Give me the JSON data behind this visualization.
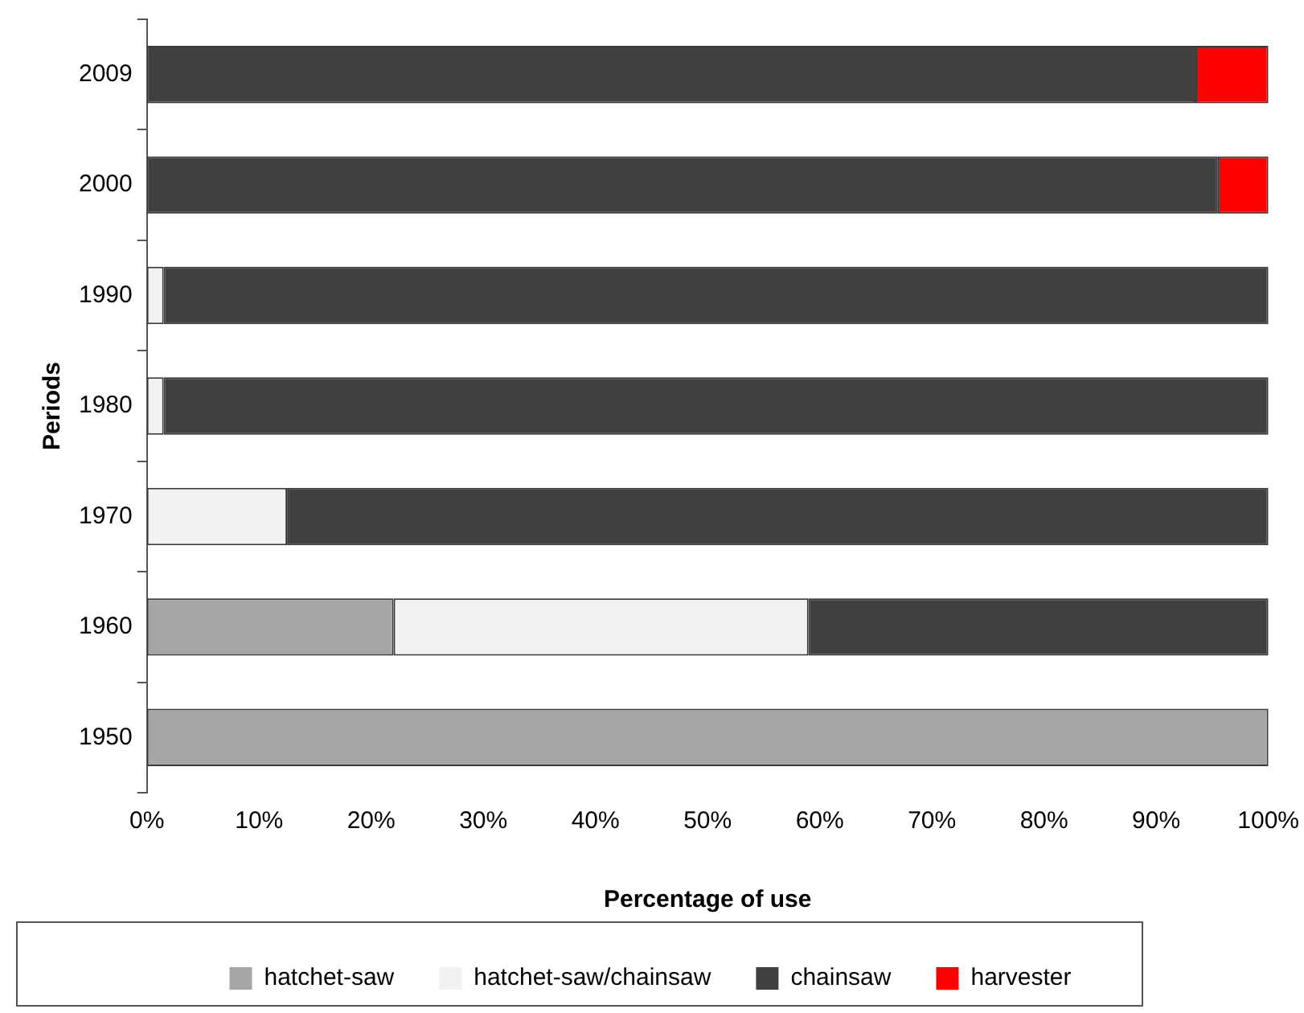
{
  "chart_data": {
    "type": "bar",
    "orientation": "horizontal",
    "stacked": true,
    "xlabel": "Percentage of use",
    "ylabel": "Periods",
    "categories": [
      "2009",
      "2000",
      "1990",
      "1980",
      "1970",
      "1960",
      "1950"
    ],
    "series": [
      {
        "name": "hatchet-saw",
        "color": "#a6a6a6",
        "values": [
          0,
          0,
          0,
          0,
          0,
          22,
          100
        ]
      },
      {
        "name": "hatchet-saw/chainsaw",
        "color": "#f2f2f2",
        "values": [
          0,
          0,
          1.5,
          1.5,
          12.5,
          37,
          0
        ]
      },
      {
        "name": "chainsaw",
        "color": "#404040",
        "values": [
          93.5,
          95.5,
          98.5,
          98.5,
          87.5,
          41,
          0
        ]
      },
      {
        "name": "harvester",
        "color": "#ff0000",
        "values": [
          6.5,
          4.5,
          0,
          0,
          0,
          0,
          0
        ]
      }
    ],
    "xlim": [
      0,
      100
    ],
    "xticks": [
      {
        "value": 0,
        "label": "0%"
      },
      {
        "value": 10,
        "label": "10%"
      },
      {
        "value": 20,
        "label": "20%"
      },
      {
        "value": 30,
        "label": "30%"
      },
      {
        "value": 40,
        "label": "40%"
      },
      {
        "value": 50,
        "label": "50%"
      },
      {
        "value": 60,
        "label": "60%"
      },
      {
        "value": 70,
        "label": "70%"
      },
      {
        "value": 80,
        "label": "80%"
      },
      {
        "value": 90,
        "label": "90%"
      },
      {
        "value": 100,
        "label": "100%"
      }
    ],
    "grid": false,
    "legend": "bottom"
  }
}
